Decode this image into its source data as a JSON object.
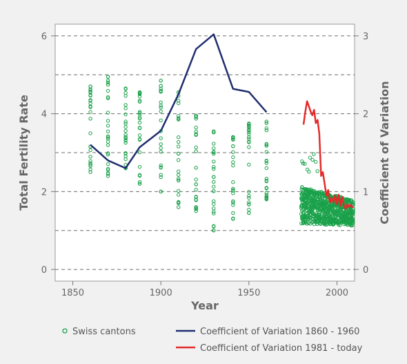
{
  "chart_data": {
    "type": "scatter",
    "title": "",
    "xlabel": "Year",
    "ylabel_left": "Total Fertility Rate",
    "ylabel_right": "Coefficient of Variation",
    "xlim": [
      1840,
      2010
    ],
    "ylim_left": [
      -0.3,
      6.3
    ],
    "ylim_right": [
      -0.15,
      3.15
    ],
    "x_ticks": [
      "1850",
      "1900",
      "1950",
      "2000"
    ],
    "x_tick_values": [
      1850,
      1900,
      1950,
      2000
    ],
    "y_left_ticks": [
      "0",
      "2",
      "4",
      "6"
    ],
    "y_left_tick_values": [
      0,
      2,
      4,
      6
    ],
    "y_right_ticks": [
      "0",
      "1",
      "2",
      "3"
    ],
    "y_right_tick_values": [
      0,
      1,
      2,
      3
    ],
    "gridlines_left": [
      0,
      1,
      2,
      3,
      4,
      5,
      6
    ],
    "grid": "horizontal dashed",
    "legend_position": "bottom",
    "series": [
      {
        "name": "Swiss cantons",
        "kind": "scatter",
        "axis": "left",
        "color": "#1aa14a",
        "x_groups": [
          {
            "x": 1860,
            "y_min": 2.5,
            "y_max": 4.7
          },
          {
            "x": 1870,
            "y_min": 2.4,
            "y_max": 4.95
          },
          {
            "x": 1880,
            "y_min": 2.6,
            "y_max": 4.65
          },
          {
            "x": 1888,
            "y_min": 2.2,
            "y_max": 4.55
          },
          {
            "x": 1900,
            "y_min": 2.0,
            "y_max": 4.85
          },
          {
            "x": 1910,
            "y_min": 1.6,
            "y_max": 4.55
          },
          {
            "x": 1920,
            "y_min": 1.5,
            "y_max": 3.95
          },
          {
            "x": 1930,
            "y_min": 1.0,
            "y_max": 3.55
          },
          {
            "x": 1941,
            "y_min": 1.3,
            "y_max": 3.4
          },
          {
            "x": 1950,
            "y_min": 1.45,
            "y_max": 3.75
          },
          {
            "x": 1960,
            "y_min": 1.8,
            "y_max": 3.8
          }
        ],
        "recent_band": {
          "x_range": [
            1980,
            2009
          ],
          "y_min": 1.1,
          "y_max": 3.0
        }
      },
      {
        "name": "Coefficient of Variation 1860 - 1960",
        "kind": "line",
        "axis": "right",
        "color": "#1f2d6e",
        "x": [
          1860,
          1870,
          1880,
          1888,
          1900,
          1910,
          1920,
          1930,
          1941,
          1950,
          1960
        ],
        "y": [
          1.6,
          1.4,
          1.3,
          1.57,
          1.78,
          2.25,
          2.83,
          3.02,
          2.32,
          2.28,
          2.02
        ]
      },
      {
        "name": "Coefficient of Variation 1981 - today",
        "kind": "line",
        "axis": "right",
        "color": "#e52a2a",
        "x": [
          1981,
          1982,
          1983,
          1984,
          1985,
          1986,
          1987,
          1988,
          1989,
          1990,
          1991,
          1992,
          1993,
          1994,
          1995,
          1996,
          1997,
          1998,
          1999,
          2000,
          2001,
          2002,
          2003,
          2004,
          2005,
          2006,
          2007,
          2008,
          2009
        ],
        "y": [
          1.86,
          2.02,
          2.16,
          2.1,
          2.03,
          1.98,
          2.05,
          1.88,
          1.92,
          1.74,
          1.2,
          1.25,
          1.1,
          0.95,
          1.02,
          0.86,
          0.92,
          0.86,
          0.95,
          0.84,
          0.96,
          0.82,
          0.93,
          0.81,
          0.78,
          0.84,
          0.8,
          0.83,
          0.79
        ]
      }
    ]
  },
  "legend": {
    "items": [
      {
        "label": "Swiss cantons",
        "color": "#1aa14a",
        "marker": "circle"
      },
      {
        "label": "Coefficient of Variation 1860 - 1960",
        "color": "#1f2d6e",
        "marker": "line"
      },
      {
        "label": "Coefficient of Variation 1981 - today",
        "color": "#e52a2a",
        "marker": "line"
      }
    ]
  }
}
